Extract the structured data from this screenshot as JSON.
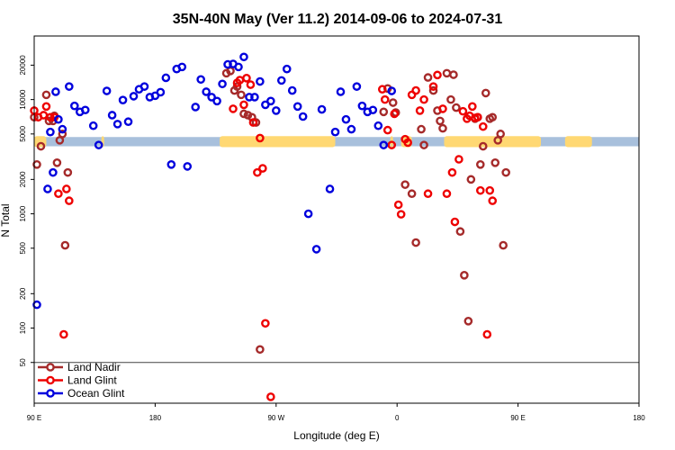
{
  "chart_data": {
    "type": "scatter",
    "title": "35N-40N May (Ver 11.2)   2014-09-06 to 2024-07-31",
    "xlabel": "Longitude (deg E)",
    "ylabel": "N Total",
    "y_scale": "log",
    "x_ticks": [
      {
        "x": 90,
        "label": "90 E"
      },
      {
        "x": 180,
        "label": "180"
      },
      {
        "x": 270,
        "label": "90 W"
      },
      {
        "x": 360,
        "label": "0"
      },
      {
        "x": 450,
        "label": "90 E"
      },
      {
        "x": 540,
        "label": "180"
      }
    ],
    "y_ticks": [
      50,
      100,
      200,
      500,
      1000,
      2000,
      5000,
      10000,
      20000
    ],
    "band": {
      "y_low": 3900,
      "y_high": 4700,
      "colors": {
        "land": "#ffd873",
        "ocean": "#a8c0dc"
      },
      "land_ranges": [
        [
          90,
          99
        ],
        [
          140,
          142
        ],
        [
          228,
          314
        ],
        [
          355,
          357
        ],
        [
          363,
          371
        ],
        [
          395,
          467
        ],
        [
          485,
          505
        ]
      ]
    },
    "separator_y": 50,
    "legend": {
      "position": "bottom-left",
      "entries": [
        {
          "name": "Land Nadir",
          "color": "#a52a2a"
        },
        {
          "name": "Land Glint",
          "color": "#ee0000"
        },
        {
          "name": "Ocean Glint",
          "color": "#0000dd"
        }
      ]
    },
    "series": [
      {
        "name": "Land Nadir",
        "color": "#a52a2a",
        "points": [
          [
            90,
            7000
          ],
          [
            92,
            2700
          ],
          [
            95,
            3900
          ],
          [
            99,
            11000
          ],
          [
            101,
            6500
          ],
          [
            104,
            6500
          ],
          [
            105,
            7200
          ],
          [
            107,
            2800
          ],
          [
            109,
            4400
          ],
          [
            111,
            5000
          ],
          [
            113,
            530
          ],
          [
            115,
            2300
          ],
          [
            233,
            17000
          ],
          [
            236,
            17800
          ],
          [
            239,
            12000
          ],
          [
            241,
            13000
          ],
          [
            244,
            11000
          ],
          [
            246,
            7500
          ],
          [
            249,
            7300
          ],
          [
            252,
            7000
          ],
          [
            255,
            6300
          ],
          [
            258,
            65
          ],
          [
            350,
            7800
          ],
          [
            353,
            12500
          ],
          [
            357,
            9400
          ],
          [
            359,
            7700
          ],
          [
            366,
            1800
          ],
          [
            371,
            1500
          ],
          [
            374,
            560
          ],
          [
            378,
            5500
          ],
          [
            380,
            4000
          ],
          [
            383,
            15600
          ],
          [
            387,
            12000
          ],
          [
            390,
            8000
          ],
          [
            392,
            6500
          ],
          [
            394,
            5600
          ],
          [
            397,
            17000
          ],
          [
            400,
            10000
          ],
          [
            402,
            16500
          ],
          [
            404,
            8500
          ],
          [
            407,
            700
          ],
          [
            410,
            290
          ],
          [
            413,
            115
          ],
          [
            415,
            2000
          ],
          [
            418,
            6800
          ],
          [
            420,
            7000
          ],
          [
            422,
            2700
          ],
          [
            424,
            3900
          ],
          [
            426,
            11400
          ],
          [
            429,
            6800
          ],
          [
            431,
            7000
          ],
          [
            433,
            2800
          ],
          [
            435,
            4400
          ],
          [
            437,
            5000
          ],
          [
            439,
            530
          ],
          [
            441,
            2300
          ]
        ]
      },
      {
        "name": "Land Glint",
        "color": "#ee0000",
        "points": [
          [
            90,
            8000
          ],
          [
            93,
            7000
          ],
          [
            97,
            7300
          ],
          [
            99,
            8700
          ],
          [
            102,
            7000
          ],
          [
            105,
            7000
          ],
          [
            108,
            1500
          ],
          [
            112,
            88
          ],
          [
            114,
            1650
          ],
          [
            116,
            1300
          ],
          [
            238,
            8300
          ],
          [
            241,
            14000
          ],
          [
            243,
            14800
          ],
          [
            246,
            9000
          ],
          [
            248,
            15400
          ],
          [
            251,
            13500
          ],
          [
            253,
            6300
          ],
          [
            256,
            2300
          ],
          [
            258,
            4600
          ],
          [
            260,
            2500
          ],
          [
            262,
            110
          ],
          [
            266,
            25
          ],
          [
            349,
            12300
          ],
          [
            351,
            10000
          ],
          [
            353,
            5400
          ],
          [
            356,
            4000
          ],
          [
            358,
            7500
          ],
          [
            361,
            1200
          ],
          [
            363,
            990
          ],
          [
            366,
            4500
          ],
          [
            368,
            4200
          ],
          [
            371,
            11000
          ],
          [
            374,
            12000
          ],
          [
            377,
            8000
          ],
          [
            380,
            10000
          ],
          [
            383,
            1500
          ],
          [
            387,
            13000
          ],
          [
            390,
            16400
          ],
          [
            394,
            8300
          ],
          [
            397,
            1500
          ],
          [
            401,
            2300
          ],
          [
            403,
            850
          ],
          [
            406,
            3000
          ],
          [
            409,
            7900
          ],
          [
            412,
            6800
          ],
          [
            414,
            7200
          ],
          [
            416,
            8700
          ],
          [
            418,
            6900
          ],
          [
            420,
            7000
          ],
          [
            422,
            1600
          ],
          [
            424,
            5800
          ],
          [
            427,
            88
          ],
          [
            429,
            1600
          ],
          [
            431,
            1300
          ]
        ]
      },
      {
        "name": "Ocean Glint",
        "color": "#0000dd",
        "points": [
          [
            92,
            160
          ],
          [
            100,
            1650
          ],
          [
            102,
            5200
          ],
          [
            104,
            2300
          ],
          [
            106,
            11700
          ],
          [
            108,
            6700
          ],
          [
            111,
            5500
          ],
          [
            116,
            13000
          ],
          [
            120,
            8800
          ],
          [
            124,
            7800
          ],
          [
            128,
            8100
          ],
          [
            134,
            5900
          ],
          [
            138,
            4000
          ],
          [
            144,
            11900
          ],
          [
            148,
            7300
          ],
          [
            152,
            6100
          ],
          [
            156,
            9900
          ],
          [
            160,
            6400
          ],
          [
            164,
            10700
          ],
          [
            168,
            12300
          ],
          [
            172,
            13000
          ],
          [
            176,
            10500
          ],
          [
            180,
            10800
          ],
          [
            184,
            11600
          ],
          [
            188,
            15500
          ],
          [
            192,
            2700
          ],
          [
            196,
            18500
          ],
          [
            200,
            19300
          ],
          [
            204,
            2600
          ],
          [
            210,
            8600
          ],
          [
            214,
            15000
          ],
          [
            218,
            11700
          ],
          [
            222,
            10500
          ],
          [
            226,
            9700
          ],
          [
            230,
            13700
          ],
          [
            234,
            20300
          ],
          [
            238,
            20500
          ],
          [
            242,
            19300
          ],
          [
            246,
            23600
          ],
          [
            250,
            10500
          ],
          [
            254,
            10500
          ],
          [
            258,
            14400
          ],
          [
            262,
            9000
          ],
          [
            266,
            9700
          ],
          [
            270,
            8000
          ],
          [
            274,
            14700
          ],
          [
            278,
            18500
          ],
          [
            282,
            12000
          ],
          [
            286,
            8700
          ],
          [
            290,
            7100
          ],
          [
            294,
            1000
          ],
          [
            300,
            490
          ],
          [
            304,
            8200
          ],
          [
            310,
            1650
          ],
          [
            314,
            5200
          ],
          [
            318,
            11700
          ],
          [
            322,
            6700
          ],
          [
            326,
            5500
          ],
          [
            330,
            13000
          ],
          [
            334,
            8800
          ],
          [
            338,
            7800
          ],
          [
            342,
            8100
          ],
          [
            346,
            5900
          ],
          [
            350,
            4000
          ],
          [
            356,
            11900
          ]
        ]
      }
    ]
  }
}
